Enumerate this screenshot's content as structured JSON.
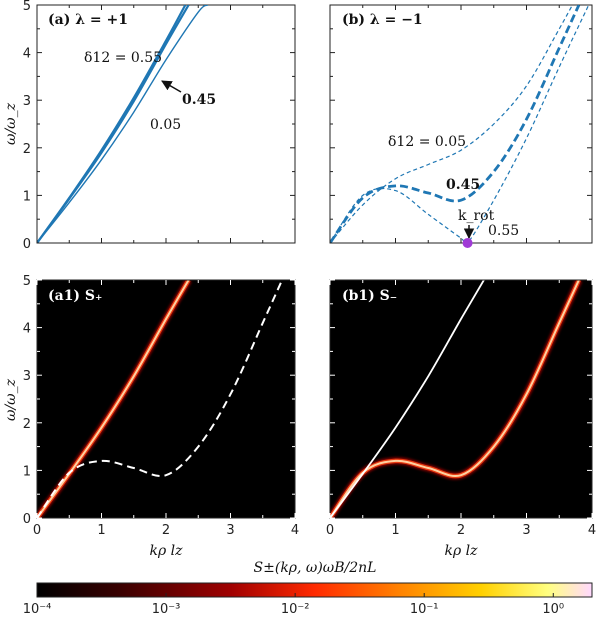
{
  "colors": {
    "curve": "#1f77b4",
    "marker": "#a03ad6",
    "heat_bg": "#000000",
    "dashed_white": "#ffffff"
  },
  "chart_data": [
    {
      "type": "line",
      "panel_label": "(a) λ = +1",
      "ylabel": "ω/ω_z",
      "xlim": [
        0,
        4
      ],
      "ylim": [
        0,
        5
      ],
      "x_ticks_labeled": false,
      "y_ticks": [
        "0",
        "1",
        "2",
        "3",
        "4",
        "5"
      ],
      "series": [
        {
          "name": "δ12 = 0.55",
          "style": "solid",
          "x": [
            0,
            0.5,
            1.0,
            1.5,
            2.0,
            2.3
          ],
          "y": [
            0,
            0.95,
            1.95,
            3.05,
            4.25,
            5.0
          ]
        },
        {
          "name": "0.45",
          "style": "solid",
          "x": [
            0,
            0.5,
            1.0,
            1.5,
            2.0,
            2.35
          ],
          "y": [
            0,
            0.93,
            1.9,
            2.98,
            4.18,
            5.0
          ]
        },
        {
          "name": "0.05",
          "style": "solid",
          "x": [
            0,
            0.5,
            1.0,
            1.5,
            2.0,
            2.5,
            2.65
          ],
          "y": [
            0,
            0.85,
            1.75,
            2.75,
            3.85,
            4.85,
            5.0
          ]
        }
      ],
      "annotations": {
        "top": "δ12 = 0.55",
        "mid": "0.45",
        "bottom": "0.05"
      }
    },
    {
      "type": "line",
      "panel_label": "(b) λ = −1",
      "xlim": [
        0,
        4
      ],
      "ylim": [
        0,
        5
      ],
      "x_ticks_labeled": false,
      "series": [
        {
          "name": "δ12 = 0.05",
          "style": "dashed-thin",
          "x": [
            0,
            0.5,
            1.0,
            1.5,
            2.0,
            2.5,
            3.0,
            3.5,
            3.7
          ],
          "y": [
            0,
            0.8,
            1.35,
            1.65,
            1.95,
            2.5,
            3.3,
            4.5,
            5.0
          ]
        },
        {
          "name": "0.45",
          "style": "dashed-thick",
          "x": [
            0,
            0.5,
            1.0,
            1.5,
            2.0,
            2.5,
            3.0,
            3.5,
            3.8
          ],
          "y": [
            0,
            0.95,
            1.2,
            1.05,
            0.9,
            1.5,
            2.6,
            4.1,
            5.0
          ]
        },
        {
          "name": "0.55",
          "style": "dashed-thin",
          "x": [
            0,
            0.5,
            1.0,
            1.5,
            2.0,
            2.1,
            2.5,
            3.0,
            3.5,
            3.95
          ],
          "y": [
            0,
            1.0,
            1.1,
            0.6,
            0.1,
            0.0,
            0.9,
            2.2,
            3.7,
            5.0
          ]
        }
      ],
      "marker": {
        "label": "k_rot",
        "x": 2.1,
        "y": 0.0
      },
      "annotations": {
        "top": "δ12 = 0.05",
        "mid": "0.45",
        "bottom": "0.55"
      }
    },
    {
      "type": "heatmap",
      "panel_label": "(a1) S₊",
      "xlabel": "kρ lz",
      "ylabel": "ω/ω_z",
      "xlim": [
        0,
        4
      ],
      "ylim": [
        0,
        5
      ],
      "x_ticks": [
        "0",
        "1",
        "2",
        "3",
        "4"
      ],
      "y_ticks": [
        "0",
        "1",
        "2",
        "3",
        "4",
        "5"
      ],
      "bright_branch": {
        "x": [
          0,
          0.5,
          1.0,
          1.5,
          2.0,
          2.35
        ],
        "y": [
          0,
          0.93,
          1.9,
          2.98,
          4.18,
          5.0
        ]
      },
      "dashed_overlay": {
        "x": [
          0,
          0.5,
          1.0,
          1.5,
          2.0,
          2.5,
          3.0,
          3.5,
          3.8
        ],
        "y": [
          0,
          0.95,
          1.2,
          1.05,
          0.9,
          1.5,
          2.6,
          4.1,
          5.0
        ]
      }
    },
    {
      "type": "heatmap",
      "panel_label": "(b1) S₋",
      "xlabel": "kρ lz",
      "xlim": [
        0,
        4
      ],
      "ylim": [
        0,
        5
      ],
      "x_ticks": [
        "0",
        "1",
        "2",
        "3",
        "4"
      ],
      "bright_branch": {
        "x": [
          0,
          0.5,
          1.0,
          1.5,
          2.0,
          2.5,
          3.0,
          3.5,
          3.8
        ],
        "y": [
          0,
          0.95,
          1.2,
          1.05,
          0.9,
          1.5,
          2.6,
          4.1,
          5.0
        ]
      },
      "solid_overlay": {
        "x": [
          0,
          0.5,
          1.0,
          1.5,
          2.0,
          2.35
        ],
        "y": [
          0,
          0.93,
          1.9,
          2.98,
          4.18,
          5.0
        ]
      }
    }
  ],
  "colorbar": {
    "label": "S±(kρ, ω)ωB/2nL",
    "ticks": [
      "10⁻⁴",
      "10⁻³",
      "10⁻²",
      "10⁻¹",
      "10⁰"
    ],
    "stops": [
      "#000000",
      "#3a0000",
      "#a00000",
      "#ff2a00",
      "#ff8000",
      "#ffd000",
      "#ffff80",
      "#ffd8ff"
    ]
  }
}
